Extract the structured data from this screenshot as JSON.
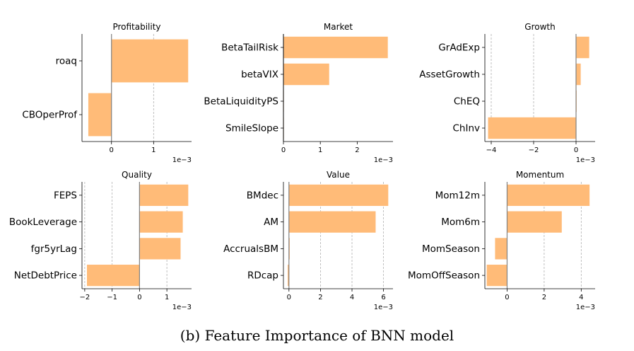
{
  "caption": "(b) Feature Importance of BNN model",
  "colors": {
    "bar": "#ffbb78",
    "axis": "#000000",
    "grid": "#b0b0b0",
    "zero": "#808080"
  },
  "chart_data": [
    {
      "type": "bar",
      "orientation": "horizontal",
      "title": "Profitability",
      "categories": [
        "roaq",
        "CBOperProf"
      ],
      "values": [
        1.82,
        -0.55
      ],
      "xlim": [
        -0.7,
        1.9
      ],
      "xticks": [
        0,
        1
      ],
      "scale_label": "1e−3",
      "grid": true
    },
    {
      "type": "bar",
      "orientation": "horizontal",
      "title": "Market",
      "categories": [
        "BetaTailRisk",
        "betaVIX",
        "BetaLiquidityPS",
        "SmileSlope"
      ],
      "values": [
        2.83,
        1.24,
        0.0,
        0.0
      ],
      "xlim": [
        0,
        2.97
      ],
      "xticks": [
        0,
        1,
        2
      ],
      "scale_label": "1e−3",
      "grid": false
    },
    {
      "type": "bar",
      "orientation": "horizontal",
      "title": "Growth",
      "categories": [
        "GrAdExp",
        "AssetGrowth",
        "ChEQ",
        "ChInv"
      ],
      "values": [
        0.62,
        0.22,
        0.03,
        -4.15
      ],
      "xlim": [
        -4.3,
        0.9
      ],
      "xticks": [
        -4,
        -2,
        0
      ],
      "scale_label": "1e−3",
      "grid": true
    },
    {
      "type": "bar",
      "orientation": "horizontal",
      "title": "Quality",
      "categories": [
        "FEPS",
        "BookLeverage",
        "fgr5yrLag",
        "NetDebtPrice"
      ],
      "values": [
        1.78,
        1.58,
        1.5,
        -1.92
      ],
      "xlim": [
        -2.1,
        1.9
      ],
      "xticks": [
        -2,
        -1,
        0,
        1
      ],
      "scale_label": "1e−3",
      "grid": true
    },
    {
      "type": "bar",
      "orientation": "horizontal",
      "title": "Value",
      "categories": [
        "BMdec",
        "AM",
        "AccrualsBM",
        "RDcap"
      ],
      "values": [
        6.3,
        5.5,
        0.05,
        -0.08
      ],
      "xlim": [
        -0.35,
        6.6
      ],
      "xticks": [
        0,
        2,
        4,
        6
      ],
      "scale_label": "1e−3",
      "grid": true
    },
    {
      "type": "bar",
      "orientation": "horizontal",
      "title": "Momentum",
      "categories": [
        "Mom12m",
        "Mom6m",
        "MomSeason",
        "MomOffSeason"
      ],
      "values": [
        4.45,
        2.95,
        -0.65,
        -1.1
      ],
      "xlim": [
        -1.2,
        4.75
      ],
      "xticks": [
        0,
        2,
        4
      ],
      "scale_label": "1e−3",
      "grid": true
    }
  ]
}
